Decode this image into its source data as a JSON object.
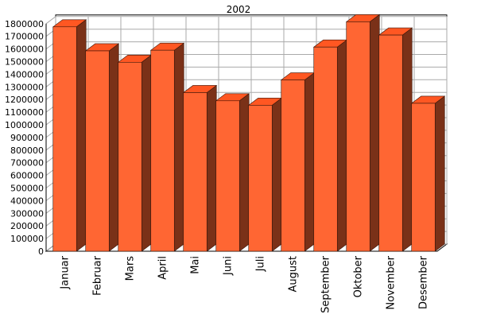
{
  "chart_data": {
    "type": "bar",
    "title": "2002",
    "xlabel": "",
    "ylabel": "",
    "categories": [
      "Januar",
      "Februar",
      "Mars",
      "April",
      "Mai",
      "Juni",
      "Juli",
      "August",
      "September",
      "Oktober",
      "November",
      "Desember"
    ],
    "values": [
      1775000,
      1585000,
      1495000,
      1590000,
      1255000,
      1190000,
      1155000,
      1355000,
      1615000,
      1815000,
      1710000,
      1170000
    ],
    "ylim": [
      0,
      1800000
    ],
    "yticks": [
      "0",
      "100000",
      "200000",
      "300000",
      "400000",
      "500000",
      "600000",
      "700000",
      "800000",
      "900000",
      "1000000",
      "1100000",
      "1200000",
      "1300000",
      "1400000",
      "1500000",
      "1600000",
      "1700000",
      "1800000"
    ],
    "grid": true,
    "style": "3d",
    "colors": {
      "bar_front": "#ff6633",
      "bar_top": "#ff5722",
      "bar_side": "#7a3118",
      "grid": "#aaaaaa",
      "wall": "#ffffff",
      "axis": "#000000"
    }
  }
}
